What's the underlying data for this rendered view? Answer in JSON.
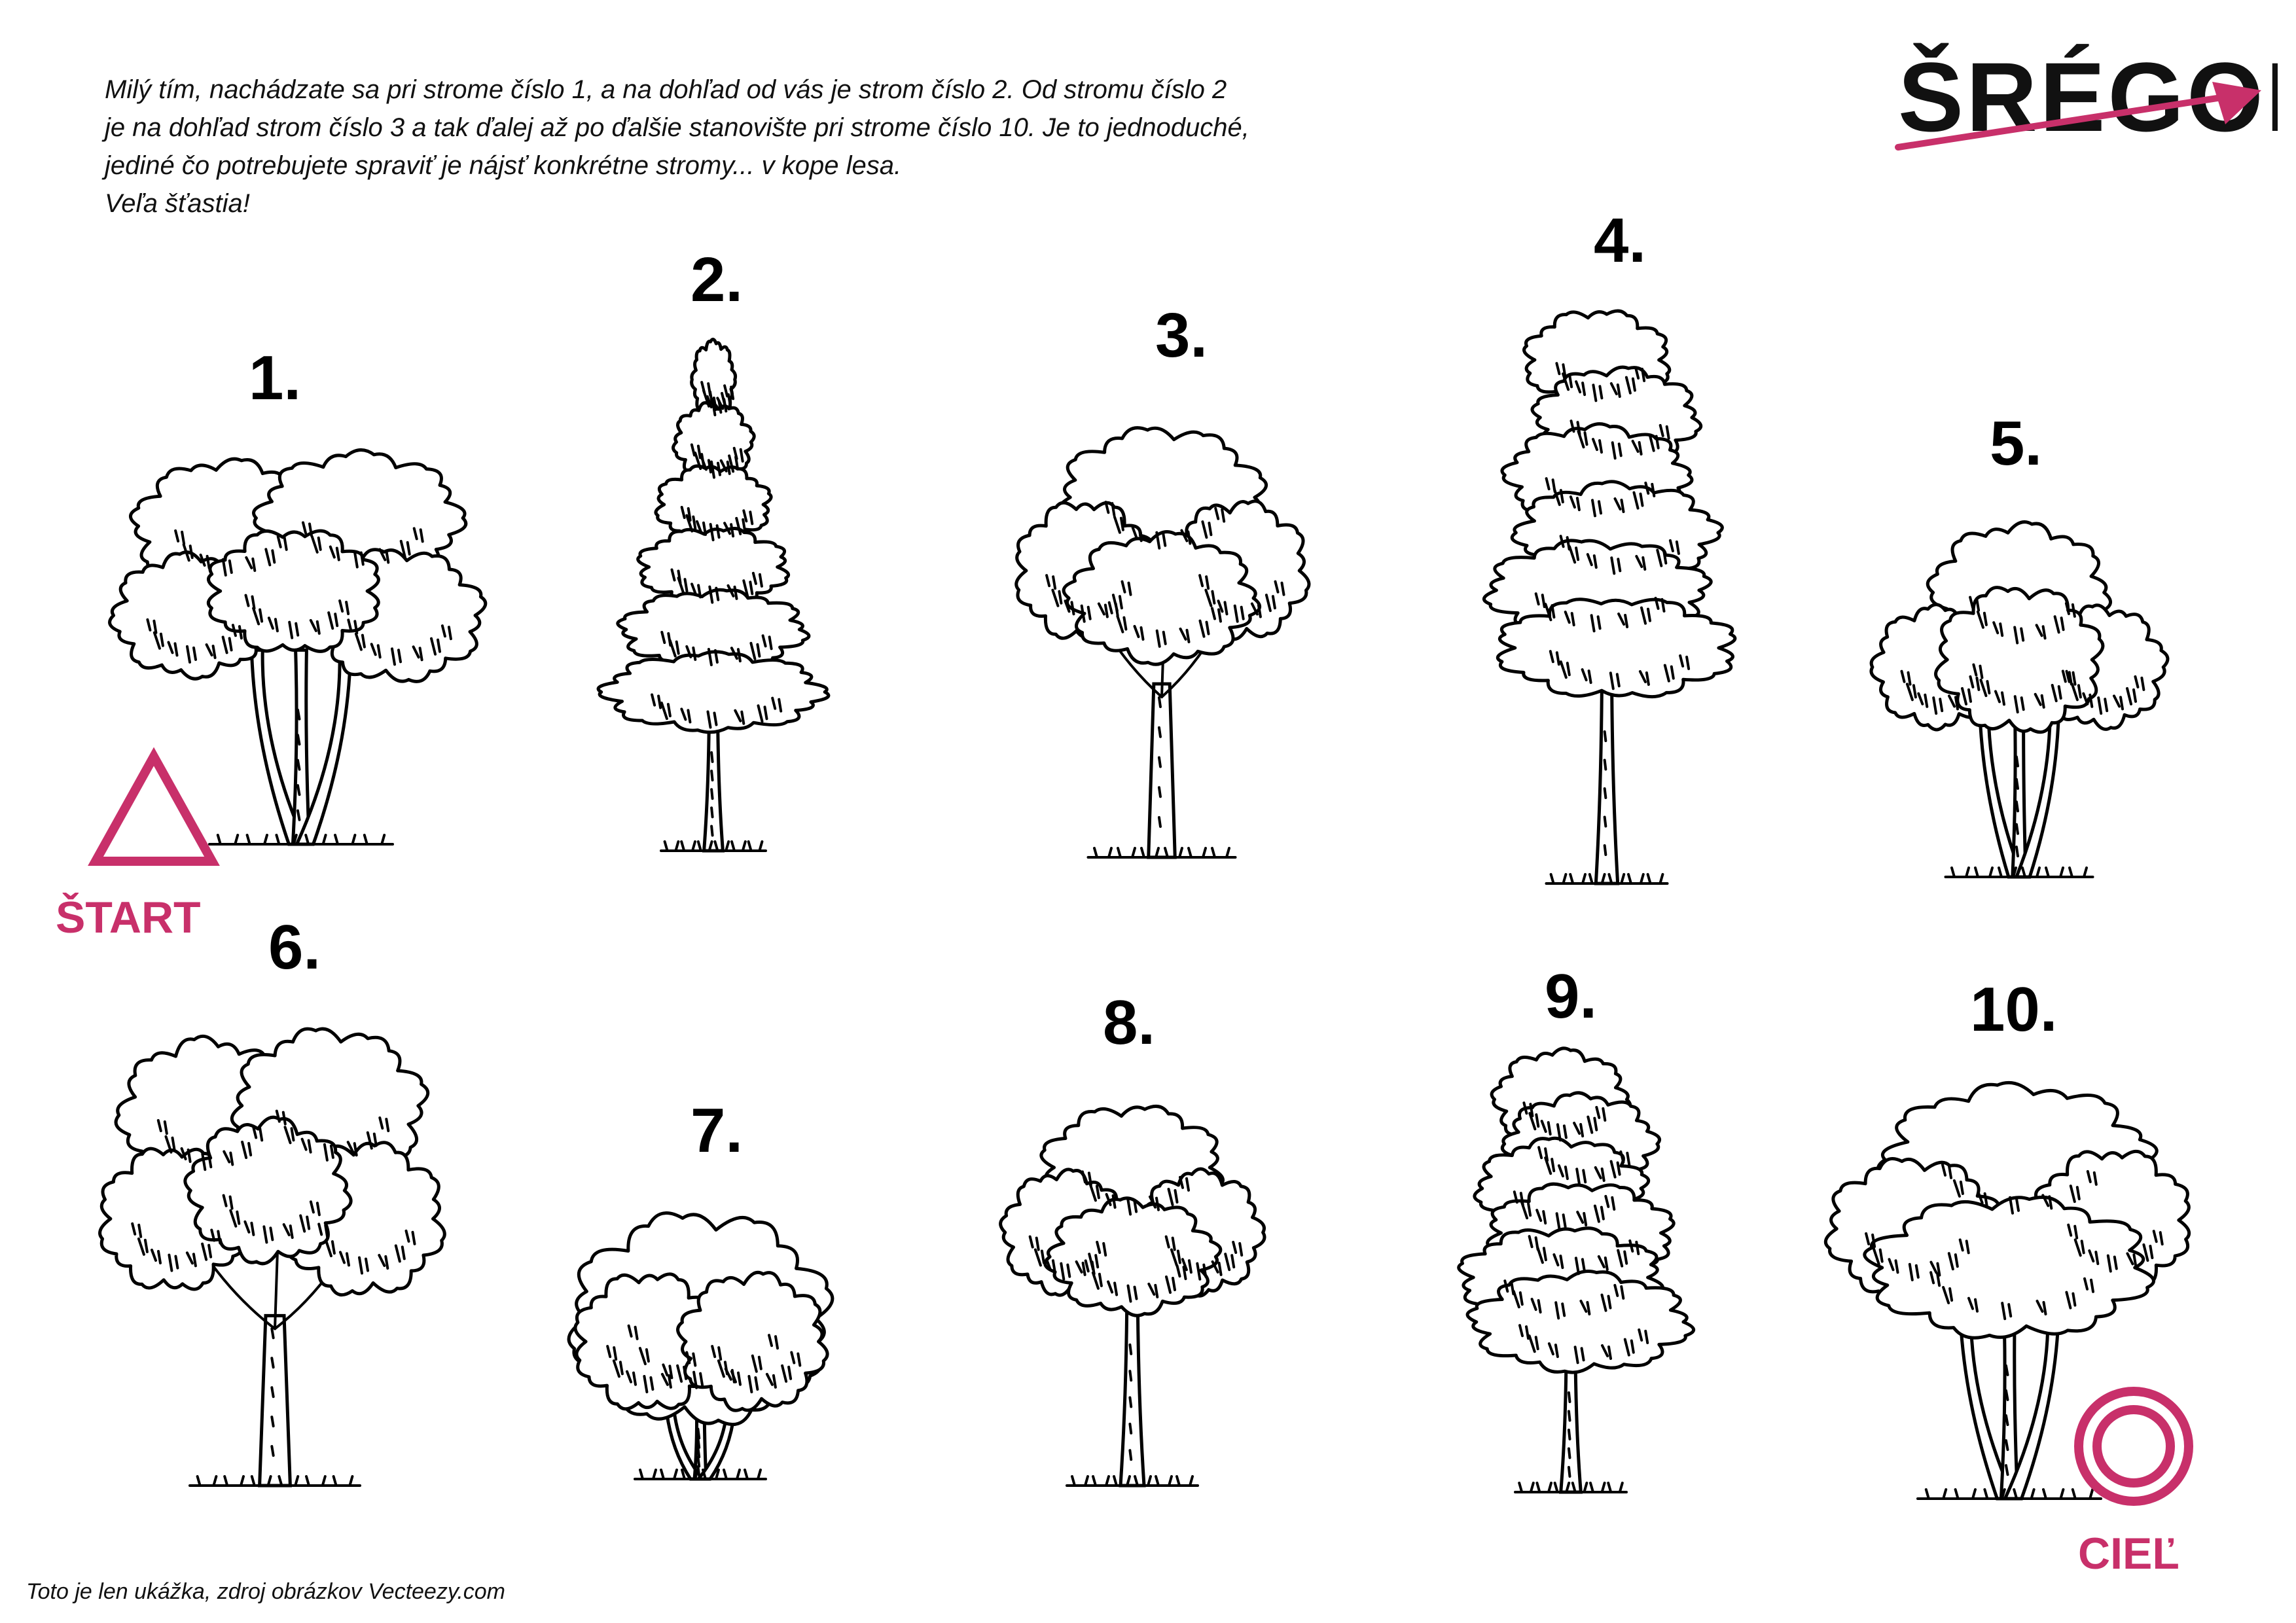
{
  "intro": {
    "line1": "Milý tím, nachádzate sa pri strome číslo 1, a na dohľad od vás je strom číslo 2. Od stromu číslo 2",
    "line2": "je na dohľad strom číslo 3 a tak ďalej až po ďalšie stanovište pri strome číslo 10. Je to jednoduché,",
    "line3": "jediné čo potrebujete spraviť je nájsť konkrétne stromy... v kope lesa.",
    "line4": "Veľa šťastia!"
  },
  "logo": {
    "text": "ŠRÉGOM",
    "accent_color": "#c8306a",
    "icon": "arrow-icon"
  },
  "trees": [
    {
      "label": "1.",
      "style": "broad-multi-trunk"
    },
    {
      "label": "2.",
      "style": "conifer"
    },
    {
      "label": "3.",
      "style": "round-branching"
    },
    {
      "label": "4.",
      "style": "tall-layered"
    },
    {
      "label": "5.",
      "style": "multi-stem"
    },
    {
      "label": "6.",
      "style": "wide-spreading"
    },
    {
      "label": "7.",
      "style": "bush"
    },
    {
      "label": "8.",
      "style": "round"
    },
    {
      "label": "9.",
      "style": "tall-narrow"
    },
    {
      "label": "10.",
      "style": "large-round"
    }
  ],
  "start": {
    "label": "ŠTART",
    "icon": "triangle-icon",
    "color": "#c8306a"
  },
  "finish": {
    "label": "CIEĽ",
    "icon": "target-circle-icon",
    "color": "#c8306a"
  },
  "footer": "Toto je len ukážka, zdroj obrázkov Vecteezy.com"
}
